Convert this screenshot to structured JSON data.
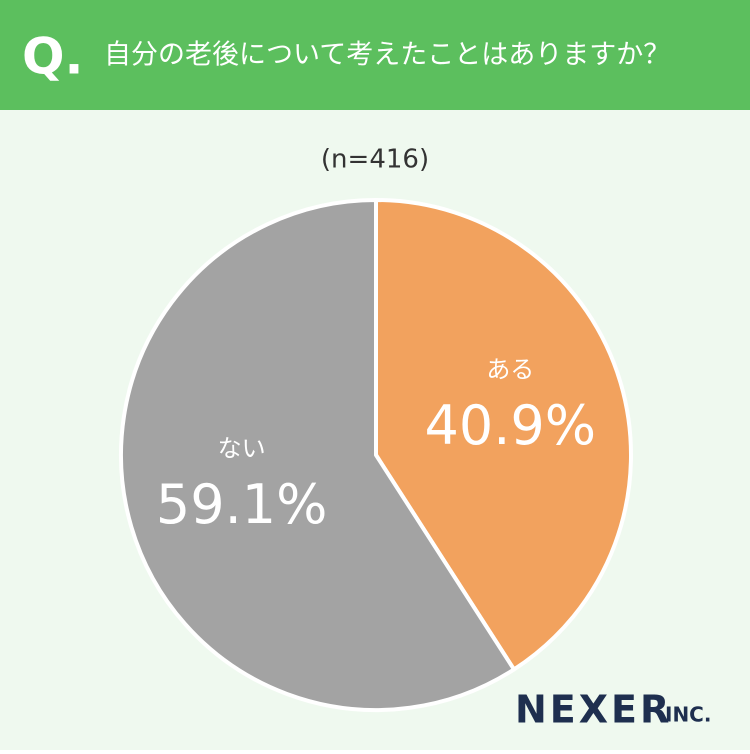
{
  "header": {
    "prefix": "Q."
  },
  "chart_data": {
    "type": "pie",
    "title": "自分の老後について考えたことはありますか？",
    "subtitle": "(n=416)",
    "categories": [
      "ある",
      "ない"
    ],
    "values": [
      40.9,
      59.1
    ],
    "value_labels": [
      "40.9%",
      "59.1%"
    ],
    "colors": [
      "#f2a25e",
      "#a3a3a3"
    ]
  },
  "brand": {
    "name": "NEXER",
    "suffix": "INC."
  }
}
